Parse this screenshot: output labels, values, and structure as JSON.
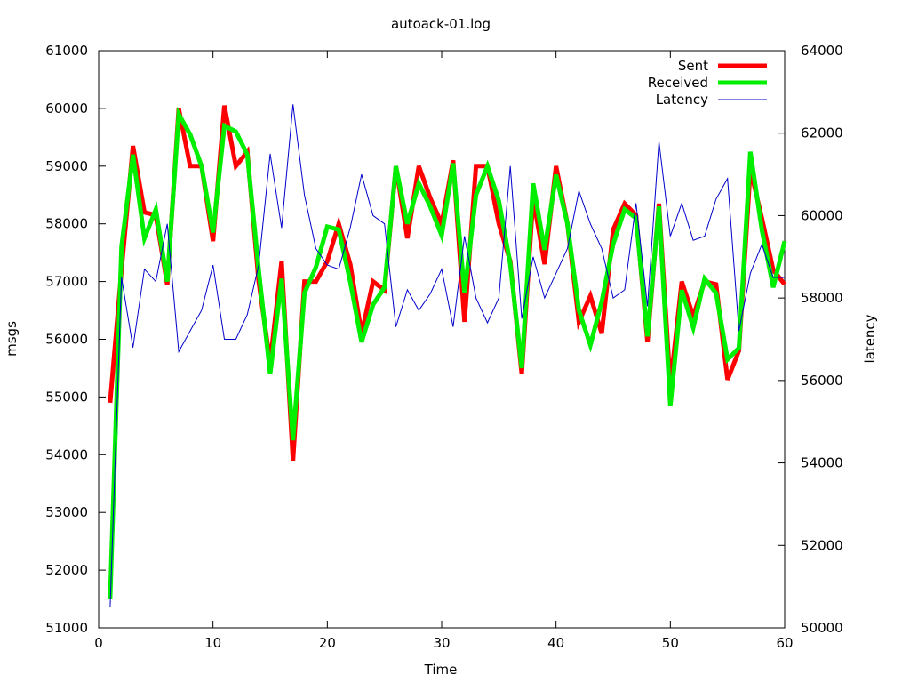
{
  "chart_data": {
    "type": "line",
    "title": "autoack-01.log",
    "xlabel": "Time",
    "ylabel": "msgs",
    "y2label": "latency",
    "xlim": [
      0,
      60
    ],
    "ylim": [
      51000,
      61000
    ],
    "y2lim": [
      50000,
      64000
    ],
    "xticks": [
      "0",
      "10",
      "20",
      "30",
      "40",
      "50",
      "60"
    ],
    "yticks": [
      "51000",
      "52000",
      "53000",
      "54000",
      "55000",
      "56000",
      "57000",
      "58000",
      "59000",
      "60000",
      "61000"
    ],
    "y2ticks": [
      "50000",
      "52000",
      "54000",
      "56000",
      "58000",
      "60000",
      "62000",
      "64000"
    ],
    "grid": false,
    "legend_position": "top-right",
    "x": [
      1,
      2,
      3,
      4,
      5,
      6,
      7,
      8,
      9,
      10,
      11,
      12,
      13,
      14,
      15,
      16,
      17,
      18,
      19,
      20,
      21,
      22,
      23,
      24,
      25,
      26,
      27,
      28,
      29,
      30,
      31,
      32,
      33,
      34,
      35,
      36,
      37,
      38,
      39,
      40,
      41,
      42,
      43,
      44,
      45,
      46,
      47,
      48,
      49,
      50,
      51,
      52,
      53,
      54,
      55,
      56,
      57,
      58,
      59,
      60
    ],
    "series": [
      {
        "name": "Sent",
        "axis": "y1",
        "color": "#ff0000",
        "width": 5,
        "values": [
          54900,
          57200,
          59350,
          58200,
          58150,
          56950,
          60000,
          59000,
          59000,
          57700,
          60050,
          59000,
          59250,
          57000,
          55600,
          57350,
          53900,
          57000,
          57000,
          57350,
          58000,
          57300,
          56100,
          57000,
          56850,
          59000,
          57750,
          59000,
          58450,
          58000,
          59100,
          56300,
          59000,
          59000,
          58000,
          57350,
          55400,
          58450,
          57300,
          59000,
          58000,
          56300,
          56750,
          56100,
          57900,
          58350,
          58150,
          55950,
          58350,
          55200,
          57000,
          56400,
          57000,
          56950,
          55300,
          55800,
          58950,
          58100,
          57200,
          56950
        ]
      },
      {
        "name": "Received",
        "axis": "y1",
        "color": "#00ee00",
        "width": 5,
        "values": [
          51500,
          57600,
          59200,
          57750,
          58250,
          57000,
          59900,
          59550,
          59000,
          57850,
          59700,
          59600,
          59200,
          57200,
          55400,
          57050,
          54250,
          56800,
          57250,
          57950,
          57900,
          57000,
          55950,
          56600,
          56900,
          59000,
          58000,
          58700,
          58300,
          57800,
          59050,
          56800,
          58500,
          59000,
          58400,
          57300,
          55500,
          58700,
          57550,
          58850,
          58000,
          56500,
          55900,
          56650,
          57650,
          58250,
          58100,
          56050,
          58300,
          54850,
          56850,
          56200,
          57050,
          56800,
          55650,
          55850,
          59250,
          57900,
          56900,
          57700
        ]
      },
      {
        "name": "Latency",
        "axis": "y2",
        "color": "#0000cc",
        "width": 1,
        "values": [
          50500,
          58500,
          56800,
          58700,
          58400,
          59800,
          56700,
          57200,
          57700,
          58800,
          57000,
          57000,
          57600,
          58800,
          61500,
          59700,
          62700,
          60500,
          59200,
          58800,
          58700,
          59700,
          61000,
          60000,
          59800,
          57300,
          58200,
          57700,
          58100,
          58700,
          57300,
          59500,
          58000,
          57400,
          58000,
          61200,
          57500,
          59000,
          58000,
          58600,
          59200,
          60600,
          59800,
          59200,
          58000,
          58200,
          60300,
          57800,
          61800,
          59500,
          60300,
          59400,
          59500,
          60400,
          60900,
          57200,
          58600,
          59300,
          58500,
          58500
        ]
      }
    ]
  }
}
